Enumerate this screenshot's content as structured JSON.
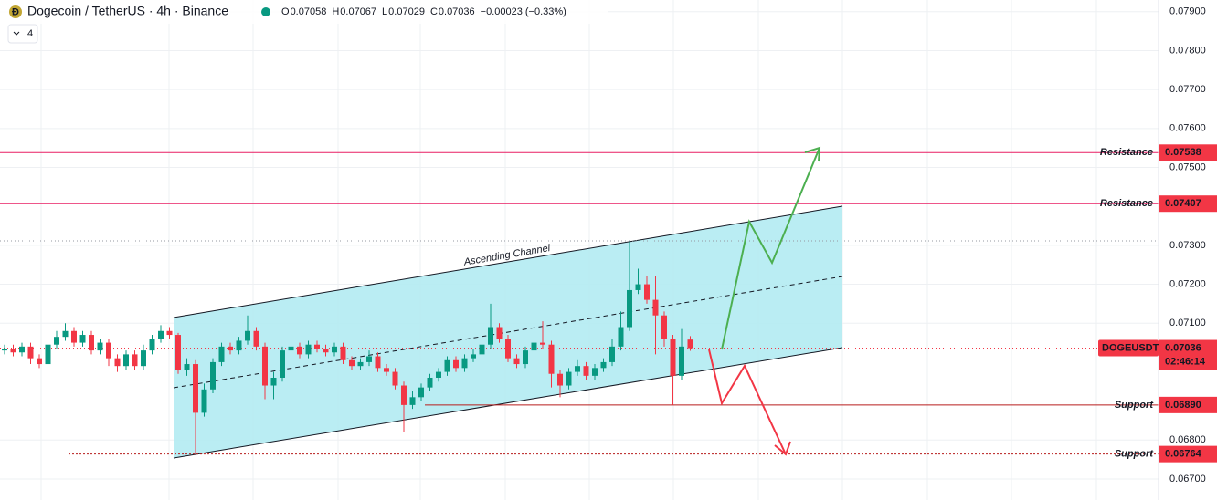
{
  "chart_data": {
    "type": "candlestick",
    "title": "Dogecoin / TetherUS · 4h · Binance",
    "indicator_count": "4",
    "legend": {
      "labels": [
        "O",
        "H",
        "L",
        "C"
      ],
      "change": "−0.00023 (−0.33%)"
    },
    "annotation": "Ascending Channel",
    "up_color": "#089981",
    "down_color": "#f23645",
    "open": [
      0.0703,
      0.07035,
      0.07025,
      0.0704,
      0.0701,
      0.06995,
      0.07045,
      0.07065,
      0.0708,
      0.0705,
      0.0707,
      0.0703,
      0.0705,
      0.0701,
      0.0699,
      0.0702,
      0.0699,
      0.0703,
      0.0706,
      0.0708,
      0.0707,
      0.0698,
      0.06995,
      0.0687,
      0.0693,
      0.07,
      0.0704,
      0.0703,
      0.07055,
      0.0708,
      0.0704,
      0.0694,
      0.0696,
      0.0703,
      0.0704,
      0.0702,
      0.07045,
      0.07035,
      0.07025,
      0.0704,
      0.07005,
      0.0699,
      0.07,
      0.07015,
      0.06985,
      0.06975,
      0.0694,
      0.0689,
      0.0691,
      0.06935,
      0.0696,
      0.06975,
      0.07005,
      0.06985,
      0.0701,
      0.0702,
      0.07045,
      0.0709,
      0.0706,
      0.0701,
      0.06995,
      0.0703,
      0.0705,
      0.07045,
      0.0697,
      0.0694,
      0.06975,
      0.0699,
      0.06965,
      0.06985,
      0.07,
      0.0704,
      0.0709,
      0.07185,
      0.072,
      0.0716,
      0.0712,
      0.0706,
      0.06965,
      0.07058
    ],
    "high": [
      0.07045,
      0.07045,
      0.0705,
      0.0705,
      0.0702,
      0.07055,
      0.0708,
      0.071,
      0.0709,
      0.0708,
      0.0708,
      0.0706,
      0.0706,
      0.0702,
      0.0703,
      0.0703,
      0.07045,
      0.0707,
      0.07095,
      0.0709,
      0.07075,
      0.0701,
      0.07005,
      0.06945,
      0.0701,
      0.0705,
      0.0705,
      0.07065,
      0.0712,
      0.0709,
      0.0705,
      0.06975,
      0.0704,
      0.0705,
      0.0705,
      0.07055,
      0.07055,
      0.07045,
      0.0705,
      0.0705,
      0.07015,
      0.0701,
      0.0703,
      0.07025,
      0.06995,
      0.06985,
      0.0695,
      0.06925,
      0.06945,
      0.0697,
      0.06985,
      0.07015,
      0.07015,
      0.0702,
      0.07035,
      0.0708,
      0.0715,
      0.071,
      0.0707,
      0.0702,
      0.0704,
      0.0706,
      0.07105,
      0.07055,
      0.0698,
      0.06985,
      0.07005,
      0.07,
      0.06995,
      0.0701,
      0.0706,
      0.0713,
      0.0731,
      0.0724,
      0.0722,
      0.0722,
      0.0713,
      0.0707,
      0.07085,
      0.07067
    ],
    "low": [
      0.0702,
      0.07015,
      0.07015,
      0.06995,
      0.06985,
      0.06985,
      0.07035,
      0.07055,
      0.0704,
      0.0704,
      0.0702,
      0.0702,
      0.0699,
      0.06975,
      0.0698,
      0.0698,
      0.0698,
      0.0702,
      0.0705,
      0.0706,
      0.0697,
      0.06965,
      0.06764,
      0.0686,
      0.0692,
      0.0699,
      0.0702,
      0.0702,
      0.07045,
      0.0703,
      0.06905,
      0.06905,
      0.0695,
      0.0702,
      0.0701,
      0.0701,
      0.07025,
      0.07015,
      0.07015,
      0.06995,
      0.0698,
      0.0698,
      0.0699,
      0.06975,
      0.06965,
      0.0693,
      0.0682,
      0.0688,
      0.069,
      0.06925,
      0.0695,
      0.06965,
      0.06975,
      0.06975,
      0.07,
      0.0701,
      0.07035,
      0.0705,
      0.07,
      0.06985,
      0.06985,
      0.0702,
      0.07035,
      0.06935,
      0.0691,
      0.0693,
      0.06965,
      0.06955,
      0.06955,
      0.06975,
      0.0699,
      0.0703,
      0.0708,
      0.07175,
      0.0715,
      0.0702,
      0.0704,
      0.0689,
      0.06955,
      0.07029
    ],
    "close": [
      0.07035,
      0.07025,
      0.0704,
      0.0701,
      0.06995,
      0.07045,
      0.07065,
      0.0708,
      0.0705,
      0.0707,
      0.0703,
      0.0705,
      0.0701,
      0.0699,
      0.0702,
      0.0699,
      0.0703,
      0.0706,
      0.0708,
      0.0707,
      0.0698,
      0.06995,
      0.0687,
      0.0693,
      0.07,
      0.0704,
      0.0703,
      0.07055,
      0.0708,
      0.0704,
      0.0694,
      0.0696,
      0.0703,
      0.0704,
      0.0702,
      0.07045,
      0.07035,
      0.07025,
      0.0704,
      0.07005,
      0.0699,
      0.07,
      0.07015,
      0.06985,
      0.06975,
      0.0694,
      0.0689,
      0.0691,
      0.06935,
      0.0696,
      0.06975,
      0.07005,
      0.06985,
      0.0701,
      0.0702,
      0.07045,
      0.0709,
      0.0706,
      0.0701,
      0.06995,
      0.0703,
      0.0705,
      0.07045,
      0.0697,
      0.0694,
      0.06975,
      0.0699,
      0.06965,
      0.06985,
      0.07,
      0.0704,
      0.0709,
      0.07185,
      0.072,
      0.0716,
      0.0712,
      0.0706,
      0.06965,
      0.0704,
      0.07036
    ],
    "levels": {
      "names": [
        "Resistance",
        "Resistance",
        "Support",
        "Support"
      ],
      "values": [
        0.07538,
        0.07407,
        0.0689,
        0.06764
      ],
      "value_labels": [
        "0.07538",
        "0.07407",
        "0.06890",
        "0.06764"
      ],
      "color": "#c2185b"
    },
    "last_price": {
      "name": "DOGEUSDT",
      "value": 0.07036,
      "value_label": "0.07036",
      "countdown": "02:46:14"
    },
    "ylim": [
      0.06646,
      0.0793
    ],
    "yticks": [
      {
        "value": 0.079,
        "label": "0.07900"
      },
      {
        "value": 0.078,
        "label": "0.07800"
      },
      {
        "value": 0.077,
        "label": "0.07700"
      },
      {
        "value": 0.076,
        "label": "0.07600"
      },
      {
        "value": 0.075,
        "label": "0.07500"
      },
      {
        "value": 0.073,
        "label": "0.07300"
      },
      {
        "value": 0.072,
        "label": "0.07200"
      },
      {
        "value": 0.071,
        "label": "0.07100"
      },
      {
        "value": 0.068,
        "label": "0.06800"
      },
      {
        "value": 0.067,
        "label": "0.06700"
      }
    ],
    "grid": true
  }
}
